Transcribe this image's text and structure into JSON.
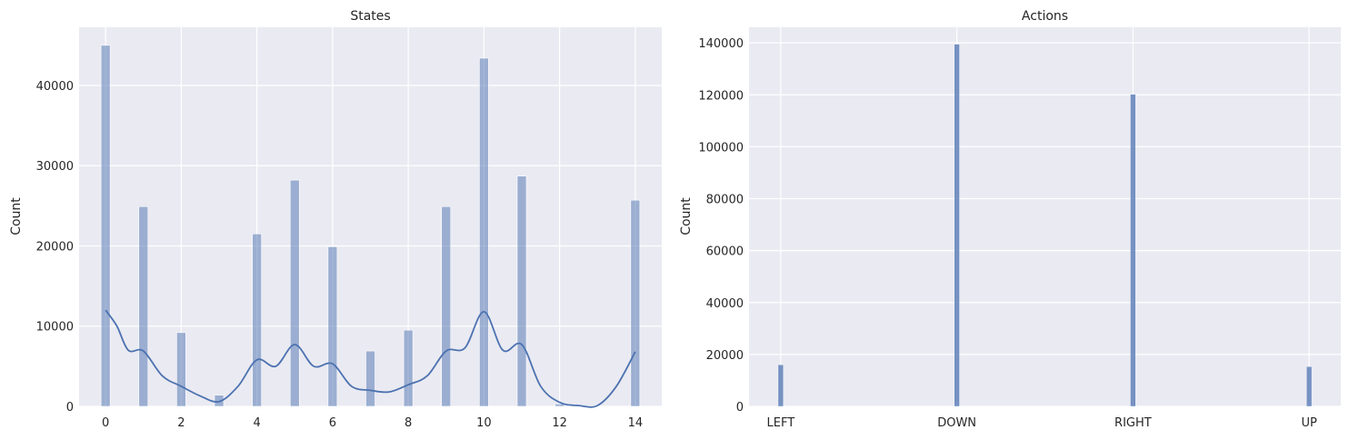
{
  "chart_data": [
    {
      "type": "bar",
      "title": "States",
      "xlabel": "",
      "ylabel": "Count",
      "xlim": [
        -0.7,
        14.7
      ],
      "ylim": [
        0,
        47250
      ],
      "xticks": [
        0,
        2,
        4,
        6,
        8,
        10,
        12,
        14
      ],
      "yticks": [
        0,
        10000,
        20000,
        30000,
        40000
      ],
      "grid": true,
      "bar_color": "#4c72b0",
      "bar_opacity": 0.5,
      "kde_color": "#4c72b0",
      "bars": [
        {
          "x": 0,
          "value": 45000
        },
        {
          "x": 1,
          "value": 24900
        },
        {
          "x": 2,
          "value": 9200
        },
        {
          "x": 3,
          "value": 1400
        },
        {
          "x": 4,
          "value": 21500
        },
        {
          "x": 5,
          "value": 28200
        },
        {
          "x": 6,
          "value": 19900
        },
        {
          "x": 7,
          "value": 6900
        },
        {
          "x": 8,
          "value": 9500
        },
        {
          "x": 9,
          "value": 24900
        },
        {
          "x": 10,
          "value": 43400
        },
        {
          "x": 11,
          "value": 28700
        },
        {
          "x": 12,
          "value": 300
        },
        {
          "x": 14,
          "value": 25700
        }
      ],
      "kde": [
        {
          "x": 0,
          "y": 12000
        },
        {
          "x": 0.3,
          "y": 10000
        },
        {
          "x": 0.6,
          "y": 7000
        },
        {
          "x": 1,
          "y": 6900
        },
        {
          "x": 1.5,
          "y": 3800
        },
        {
          "x": 2,
          "y": 2500
        },
        {
          "x": 2.5,
          "y": 1300
        },
        {
          "x": 3,
          "y": 600
        },
        {
          "x": 3.5,
          "y": 2500
        },
        {
          "x": 4,
          "y": 5800
        },
        {
          "x": 4.5,
          "y": 5000
        },
        {
          "x": 5,
          "y": 7700
        },
        {
          "x": 5.5,
          "y": 5000
        },
        {
          "x": 6,
          "y": 5300
        },
        {
          "x": 6.5,
          "y": 2500
        },
        {
          "x": 7,
          "y": 2000
        },
        {
          "x": 7.5,
          "y": 1800
        },
        {
          "x": 8,
          "y": 2700
        },
        {
          "x": 8.5,
          "y": 3800
        },
        {
          "x": 9,
          "y": 6900
        },
        {
          "x": 9.5,
          "y": 7300
        },
        {
          "x": 10,
          "y": 11800
        },
        {
          "x": 10.5,
          "y": 7000
        },
        {
          "x": 11,
          "y": 7700
        },
        {
          "x": 11.5,
          "y": 2500
        },
        {
          "x": 12,
          "y": 500
        },
        {
          "x": 12.5,
          "y": 100
        },
        {
          "x": 13,
          "y": 100
        },
        {
          "x": 13.5,
          "y": 2500
        },
        {
          "x": 14,
          "y": 6800
        }
      ]
    },
    {
      "type": "bar",
      "title": "Actions",
      "xlabel": "",
      "ylabel": "Count",
      "xlim": [
        -0.18,
        3.18
      ],
      "ylim": [
        0,
        146000
      ],
      "categories": [
        "LEFT",
        "DOWN",
        "RIGHT",
        "UP"
      ],
      "values": [
        16000,
        139500,
        120200,
        15300
      ],
      "yticks": [
        0,
        20000,
        40000,
        60000,
        80000,
        100000,
        120000,
        140000
      ],
      "grid": true,
      "bar_color": "#4c72b0",
      "bar_opacity": 0.75
    }
  ]
}
